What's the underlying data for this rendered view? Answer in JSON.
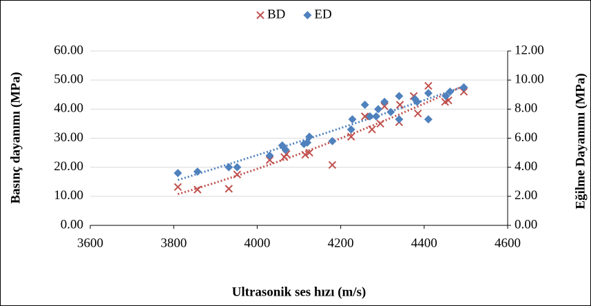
{
  "chart_data": {
    "type": "scatter",
    "x_label": "Ultrasonik ses hızı (m/s)",
    "y_label": "Basınç dayanımı (MPa)",
    "y2_label": "Eğilme Dayanımı (MPa)",
    "xlim": [
      3600,
      4600
    ],
    "xticks": [
      3600,
      3800,
      4000,
      4200,
      4400,
      4600
    ],
    "ylim": [
      0,
      60
    ],
    "yticks": [
      {
        "value": 0,
        "label": "0.00"
      },
      {
        "value": 10,
        "label": "10.00"
      },
      {
        "value": 20,
        "label": "20.00"
      },
      {
        "value": 30,
        "label": "30.00"
      },
      {
        "value": 40,
        "label": "40.00"
      },
      {
        "value": 50,
        "label": "50.00"
      },
      {
        "value": 60,
        "label": "60.00"
      }
    ],
    "y2lim": [
      0,
      12
    ],
    "y2ticks": [
      {
        "value": 0,
        "label": "0.00"
      },
      {
        "value": 2,
        "label": "2.00"
      },
      {
        "value": 4,
        "label": "4.00"
      },
      {
        "value": 6,
        "label": "6.00"
      },
      {
        "value": 8,
        "label": "8.00"
      },
      {
        "value": 10,
        "label": "10.00"
      },
      {
        "value": 12,
        "label": "12.00"
      }
    ],
    "grid": true,
    "legend": "top",
    "series": [
      {
        "name": "BD",
        "color": "#c0504d",
        "marker": "x",
        "x": [
          3810,
          3857,
          3932,
          3952,
          4030,
          4065,
          4070,
          4115,
          4125,
          4180,
          4225,
          4258,
          4275,
          4295,
          4305,
          4340,
          4342,
          4375,
          4385,
          4410,
          4450,
          4458,
          4495
        ],
        "values": [
          13.2,
          12.3,
          12.6,
          17.5,
          22.5,
          23.5,
          24.5,
          24.3,
          25.0,
          20.8,
          30.5,
          37.5,
          33.0,
          35.0,
          41.0,
          35.5,
          41.5,
          44.5,
          38.5,
          48.0,
          42.5,
          43.0,
          46.0
        ]
      },
      {
        "name": "ED",
        "color": "#4f81bd",
        "marker": "diamond",
        "axis": "y2",
        "x": [
          3810,
          3857,
          3932,
          3952,
          4030,
          4060,
          4068,
          4112,
          4120,
          4125,
          4180,
          4225,
          4228,
          4258,
          4270,
          4285,
          4290,
          4305,
          4320,
          4340,
          4340,
          4378,
          4383,
          4410,
          4410,
          4452,
          4462,
          4495
        ],
        "values": [
          3.6,
          3.7,
          4.0,
          4.0,
          4.8,
          5.5,
          5.2,
          5.6,
          5.7,
          6.1,
          5.8,
          6.6,
          7.3,
          8.3,
          7.5,
          7.5,
          8.0,
          8.5,
          7.8,
          8.9,
          7.3,
          8.7,
          8.5,
          9.1,
          7.3,
          8.9,
          9.2,
          9.5
        ]
      }
    ]
  }
}
